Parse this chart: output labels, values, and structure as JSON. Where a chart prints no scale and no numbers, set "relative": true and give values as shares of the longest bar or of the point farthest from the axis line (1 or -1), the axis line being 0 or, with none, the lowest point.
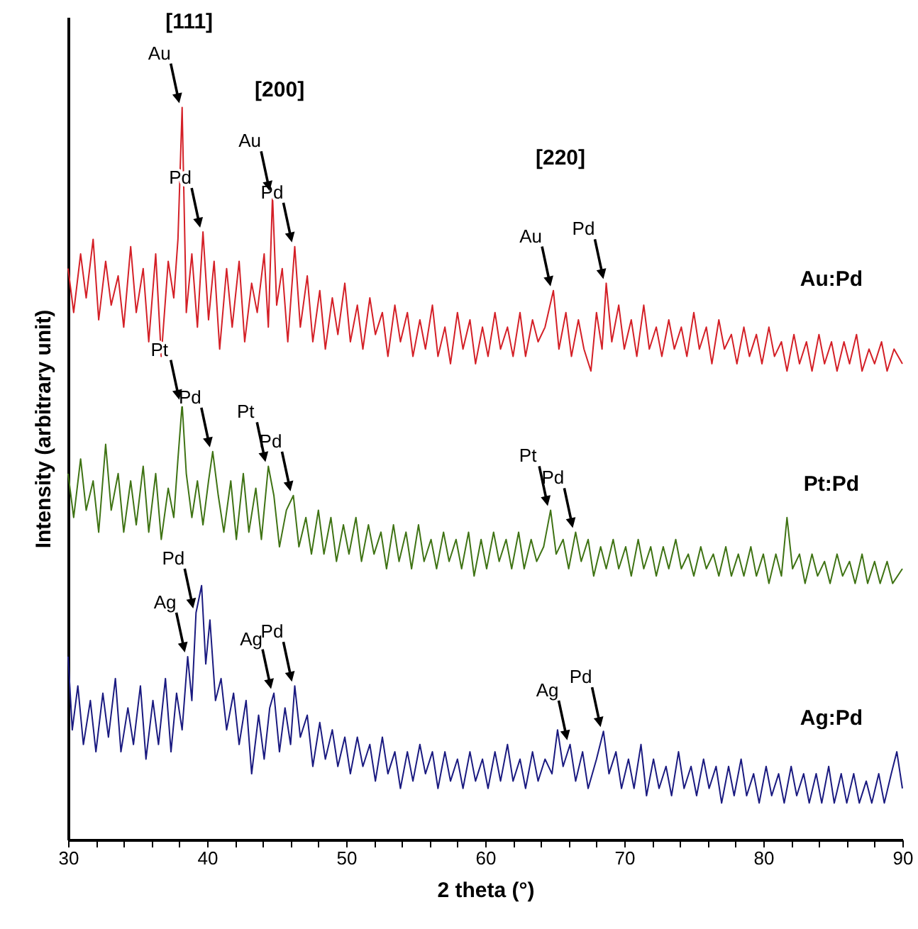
{
  "chart_data": {
    "type": "line",
    "xlabel": "2 theta (°)",
    "ylabel": "Intensity (arbitrary unit)",
    "relative": true,
    "xlim": [
      30,
      90
    ],
    "xticks": [
      30,
      {
        "value": 32,
        "label": null
      },
      {
        "value": 34,
        "label": null
      },
      {
        "value": 36,
        "label": null
      },
      {
        "value": 38,
        "label": null
      },
      40,
      {
        "value": 42,
        "label": null
      },
      {
        "value": 44,
        "label": null
      },
      {
        "value": 46,
        "label": null
      },
      {
        "value": 48,
        "label": null
      },
      50,
      {
        "value": 52,
        "label": null
      },
      {
        "value": 54,
        "label": null
      },
      {
        "value": 56,
        "label": null
      },
      {
        "value": 58,
        "label": null
      },
      60,
      {
        "value": 62,
        "label": null
      },
      {
        "value": 64,
        "label": null
      },
      {
        "value": 66,
        "label": null
      },
      {
        "value": 68,
        "label": null
      },
      70,
      {
        "value": 72,
        "label": null
      },
      {
        "value": 74,
        "label": null
      },
      {
        "value": 76,
        "label": null
      },
      {
        "value": 78,
        "label": null
      },
      80,
      {
        "value": 82,
        "label": null
      },
      {
        "value": 84,
        "label": null
      },
      {
        "value": 86,
        "label": null
      },
      {
        "value": 88,
        "label": null
      },
      90
    ],
    "series": [
      {
        "name": "Au:Pd",
        "color": "#d42027",
        "x": [
          30.0,
          30.4,
          30.9,
          31.3,
          31.8,
          32.2,
          32.7,
          33.1,
          33.6,
          34.0,
          34.5,
          34.9,
          35.4,
          35.8,
          36.3,
          36.7,
          37.2,
          37.6,
          37.9,
          38.2,
          38.5,
          38.9,
          39.3,
          39.7,
          40.1,
          40.5,
          40.9,
          41.4,
          41.8,
          42.3,
          42.7,
          43.2,
          43.6,
          44.1,
          44.4,
          44.7,
          45.0,
          45.4,
          45.8,
          46.3,
          46.7,
          47.2,
          47.6,
          48.1,
          48.5,
          49.0,
          49.4,
          49.9,
          50.3,
          50.8,
          51.2,
          51.7,
          52.1,
          52.6,
          53.0,
          53.5,
          53.9,
          54.4,
          54.8,
          55.3,
          55.7,
          56.2,
          56.6,
          57.1,
          57.5,
          58.0,
          58.4,
          58.9,
          59.3,
          59.8,
          60.2,
          60.7,
          61.1,
          61.6,
          62.0,
          62.5,
          62.9,
          63.4,
          63.8,
          64.3,
          64.9,
          65.3,
          65.8,
          66.2,
          66.7,
          67.1,
          67.6,
          68.0,
          68.4,
          68.7,
          69.1,
          69.6,
          70.0,
          70.5,
          70.9,
          71.4,
          71.8,
          72.3,
          72.7,
          73.2,
          73.6,
          74.1,
          74.5,
          75.0,
          75.4,
          75.9,
          76.3,
          76.8,
          77.2,
          77.7,
          78.1,
          78.6,
          79.0,
          79.5,
          79.9,
          80.4,
          80.8,
          81.3,
          81.7,
          82.2,
          82.6,
          83.1,
          83.5,
          84.0,
          84.4,
          84.9,
          85.3,
          85.8,
          86.2,
          86.7,
          87.1,
          87.6,
          88.0,
          88.5,
          88.9,
          89.4,
          90.0
        ],
        "values": [
          0.78,
          0.72,
          0.8,
          0.74,
          0.82,
          0.71,
          0.79,
          0.73,
          0.77,
          0.7,
          0.81,
          0.72,
          0.78,
          0.68,
          0.8,
          0.66,
          0.79,
          0.74,
          0.82,
          1.0,
          0.72,
          0.8,
          0.7,
          0.83,
          0.71,
          0.79,
          0.67,
          0.78,
          0.7,
          0.79,
          0.68,
          0.76,
          0.72,
          0.8,
          0.7,
          0.88,
          0.73,
          0.78,
          0.68,
          0.81,
          0.7,
          0.77,
          0.68,
          0.75,
          0.67,
          0.74,
          0.69,
          0.76,
          0.68,
          0.73,
          0.67,
          0.74,
          0.69,
          0.72,
          0.66,
          0.73,
          0.68,
          0.72,
          0.66,
          0.71,
          0.67,
          0.73,
          0.66,
          0.7,
          0.65,
          0.72,
          0.67,
          0.71,
          0.65,
          0.7,
          0.66,
          0.72,
          0.67,
          0.7,
          0.66,
          0.72,
          0.66,
          0.71,
          0.68,
          0.7,
          0.75,
          0.67,
          0.72,
          0.66,
          0.71,
          0.67,
          0.64,
          0.72,
          0.67,
          0.76,
          0.68,
          0.73,
          0.67,
          0.71,
          0.66,
          0.73,
          0.67,
          0.7,
          0.66,
          0.71,
          0.67,
          0.7,
          0.66,
          0.72,
          0.67,
          0.7,
          0.65,
          0.71,
          0.67,
          0.69,
          0.65,
          0.7,
          0.66,
          0.69,
          0.65,
          0.7,
          0.66,
          0.68,
          0.64,
          0.69,
          0.65,
          0.68,
          0.64,
          0.69,
          0.65,
          0.68,
          0.64,
          0.68,
          0.65,
          0.69,
          0.64,
          0.67,
          0.65,
          0.68,
          0.64,
          0.67,
          0.65
        ]
      },
      {
        "name": "Pt:Pd",
        "color": "#3f7314",
        "x": [
          30.0,
          30.4,
          30.9,
          31.3,
          31.8,
          32.2,
          32.7,
          33.1,
          33.6,
          34.0,
          34.5,
          34.9,
          35.4,
          35.8,
          36.3,
          36.7,
          37.2,
          37.6,
          37.9,
          38.2,
          38.5,
          38.9,
          39.3,
          39.7,
          40.1,
          40.4,
          40.8,
          41.2,
          41.7,
          42.1,
          42.6,
          43.0,
          43.5,
          43.9,
          44.4,
          44.8,
          45.2,
          45.7,
          46.2,
          46.6,
          47.1,
          47.5,
          48.0,
          48.4,
          48.9,
          49.3,
          49.8,
          50.2,
          50.7,
          51.1,
          51.6,
          52.0,
          52.5,
          52.9,
          53.4,
          53.8,
          54.3,
          54.7,
          55.2,
          55.6,
          56.1,
          56.5,
          57.0,
          57.4,
          57.9,
          58.3,
          58.8,
          59.2,
          59.7,
          60.1,
          60.6,
          61.0,
          61.5,
          61.9,
          62.4,
          62.8,
          63.3,
          63.7,
          64.2,
          64.7,
          65.1,
          65.6,
          66.0,
          66.5,
          66.9,
          67.4,
          67.8,
          68.3,
          68.7,
          69.2,
          69.6,
          70.1,
          70.5,
          71.0,
          71.4,
          71.9,
          72.3,
          72.8,
          73.2,
          73.7,
          74.1,
          74.6,
          75.0,
          75.5,
          75.9,
          76.4,
          76.8,
          77.3,
          77.7,
          78.2,
          78.6,
          79.1,
          79.5,
          80.0,
          80.4,
          80.9,
          81.3,
          81.7,
          82.1,
          82.6,
          83.0,
          83.5,
          83.9,
          84.4,
          84.8,
          85.3,
          85.7,
          86.2,
          86.6,
          87.1,
          87.5,
          88.0,
          88.4,
          88.9,
          89.3,
          90.0
        ],
        "values": [
          0.5,
          0.44,
          0.52,
          0.45,
          0.49,
          0.42,
          0.54,
          0.45,
          0.5,
          0.42,
          0.49,
          0.43,
          0.51,
          0.42,
          0.5,
          0.41,
          0.48,
          0.44,
          0.52,
          0.595,
          0.5,
          0.44,
          0.49,
          0.43,
          0.49,
          0.53,
          0.47,
          0.42,
          0.49,
          0.41,
          0.5,
          0.42,
          0.48,
          0.41,
          0.51,
          0.47,
          0.4,
          0.45,
          0.47,
          0.4,
          0.44,
          0.39,
          0.45,
          0.39,
          0.44,
          0.38,
          0.43,
          0.39,
          0.44,
          0.38,
          0.43,
          0.39,
          0.42,
          0.37,
          0.43,
          0.38,
          0.42,
          0.37,
          0.43,
          0.38,
          0.41,
          0.37,
          0.42,
          0.38,
          0.41,
          0.37,
          0.42,
          0.36,
          0.41,
          0.37,
          0.42,
          0.38,
          0.41,
          0.37,
          0.42,
          0.37,
          0.41,
          0.38,
          0.4,
          0.45,
          0.39,
          0.41,
          0.37,
          0.42,
          0.38,
          0.41,
          0.36,
          0.4,
          0.37,
          0.41,
          0.37,
          0.4,
          0.36,
          0.41,
          0.37,
          0.4,
          0.36,
          0.4,
          0.37,
          0.41,
          0.37,
          0.39,
          0.36,
          0.4,
          0.37,
          0.39,
          0.36,
          0.4,
          0.36,
          0.39,
          0.36,
          0.4,
          0.36,
          0.39,
          0.35,
          0.39,
          0.36,
          0.44,
          0.37,
          0.39,
          0.35,
          0.39,
          0.36,
          0.38,
          0.35,
          0.39,
          0.36,
          0.38,
          0.35,
          0.39,
          0.35,
          0.38,
          0.35,
          0.38,
          0.35,
          0.37
        ]
      },
      {
        "name": "Ag:Pd",
        "color": "#1a1a80",
        "x": [
          30.0,
          30.3,
          30.7,
          31.1,
          31.6,
          32.0,
          32.5,
          32.9,
          33.4,
          33.8,
          34.3,
          34.7,
          35.2,
          35.6,
          36.1,
          36.5,
          37.0,
          37.4,
          37.8,
          38.2,
          38.6,
          38.9,
          39.2,
          39.6,
          39.9,
          40.2,
          40.6,
          41.0,
          41.4,
          41.9,
          42.3,
          42.8,
          43.2,
          43.7,
          44.1,
          44.5,
          44.8,
          45.2,
          45.6,
          46.0,
          46.3,
          46.7,
          47.2,
          47.6,
          48.1,
          48.5,
          49.0,
          49.4,
          49.9,
          50.3,
          50.8,
          51.2,
          51.7,
          52.1,
          52.6,
          53.0,
          53.5,
          53.9,
          54.4,
          54.8,
          55.3,
          55.7,
          56.2,
          56.6,
          57.1,
          57.5,
          58.0,
          58.4,
          58.9,
          59.3,
          59.8,
          60.2,
          60.7,
          61.1,
          61.6,
          62.0,
          62.5,
          62.9,
          63.4,
          63.8,
          64.3,
          64.8,
          65.2,
          65.6,
          66.1,
          66.5,
          67.0,
          67.4,
          68.0,
          68.5,
          68.9,
          69.4,
          69.8,
          70.3,
          70.7,
          71.2,
          71.6,
          72.1,
          72.5,
          73.0,
          73.4,
          73.9,
          74.3,
          74.8,
          75.2,
          75.7,
          76.1,
          76.6,
          77.0,
          77.5,
          77.9,
          78.4,
          78.8,
          79.3,
          79.7,
          80.2,
          80.6,
          81.1,
          81.5,
          82.0,
          82.4,
          82.9,
          83.3,
          83.8,
          84.2,
          84.7,
          85.1,
          85.6,
          86.0,
          86.5,
          86.9,
          87.4,
          87.8,
          88.3,
          88.7,
          89.2,
          89.6,
          90.0
        ],
        "values": [
          0.25,
          0.15,
          0.21,
          0.13,
          0.19,
          0.12,
          0.2,
          0.14,
          0.22,
          0.12,
          0.18,
          0.13,
          0.21,
          0.11,
          0.19,
          0.13,
          0.22,
          0.12,
          0.2,
          0.15,
          0.25,
          0.19,
          0.31,
          0.347,
          0.24,
          0.3,
          0.19,
          0.22,
          0.15,
          0.2,
          0.13,
          0.19,
          0.09,
          0.17,
          0.11,
          0.18,
          0.2,
          0.12,
          0.18,
          0.13,
          0.21,
          0.14,
          0.17,
          0.1,
          0.16,
          0.11,
          0.15,
          0.1,
          0.14,
          0.09,
          0.14,
          0.1,
          0.13,
          0.08,
          0.14,
          0.09,
          0.12,
          0.07,
          0.12,
          0.08,
          0.13,
          0.09,
          0.12,
          0.07,
          0.12,
          0.08,
          0.11,
          0.07,
          0.12,
          0.08,
          0.11,
          0.07,
          0.12,
          0.08,
          0.13,
          0.08,
          0.11,
          0.07,
          0.12,
          0.08,
          0.11,
          0.09,
          0.15,
          0.1,
          0.13,
          0.08,
          0.12,
          0.07,
          0.11,
          0.148,
          0.09,
          0.12,
          0.07,
          0.11,
          0.07,
          0.13,
          0.06,
          0.11,
          0.07,
          0.1,
          0.06,
          0.12,
          0.07,
          0.1,
          0.06,
          0.11,
          0.07,
          0.1,
          0.05,
          0.1,
          0.06,
          0.11,
          0.06,
          0.09,
          0.05,
          0.1,
          0.06,
          0.09,
          0.05,
          0.1,
          0.06,
          0.09,
          0.05,
          0.09,
          0.05,
          0.1,
          0.05,
          0.09,
          0.05,
          0.09,
          0.05,
          0.08,
          0.05,
          0.09,
          0.05,
          0.09,
          0.12,
          0.07
        ]
      }
    ],
    "annotations": [
      "[111]",
      "[200]",
      "[220]",
      {
        "text": "Au",
        "x": 38.2,
        "y": 1.0
      },
      {
        "text": "Pd",
        "x": 39.7,
        "y": 0.83
      },
      {
        "text": "Au",
        "x": 44.7,
        "y": 0.88
      },
      {
        "text": "Pd",
        "x": 46.3,
        "y": 0.81
      },
      {
        "text": "Au",
        "x": 64.9,
        "y": 0.75
      },
      {
        "text": "Pd",
        "x": 68.7,
        "y": 0.76
      },
      {
        "text": "Pt",
        "x": 38.2,
        "y": 0.595
      },
      {
        "text": "Pd",
        "x": 40.4,
        "y": 0.53
      },
      {
        "text": "Pt",
        "x": 44.4,
        "y": 0.51
      },
      {
        "text": "Pd",
        "x": 46.2,
        "y": 0.47
      },
      {
        "text": "Pt",
        "x": 64.7,
        "y": 0.45
      },
      {
        "text": "Pd",
        "x": 66.5,
        "y": 0.42
      },
      {
        "text": "Ag",
        "x": 38.6,
        "y": 0.25
      },
      {
        "text": "Pd",
        "x": 39.2,
        "y": 0.31
      },
      {
        "text": "Ag",
        "x": 44.8,
        "y": 0.2
      },
      {
        "text": "Pd",
        "x": 46.3,
        "y": 0.21
      },
      {
        "text": "Ag",
        "x": 66.1,
        "y": 0.13
      },
      {
        "text": "Pd",
        "x": 68.5,
        "y": 0.148
      }
    ]
  }
}
